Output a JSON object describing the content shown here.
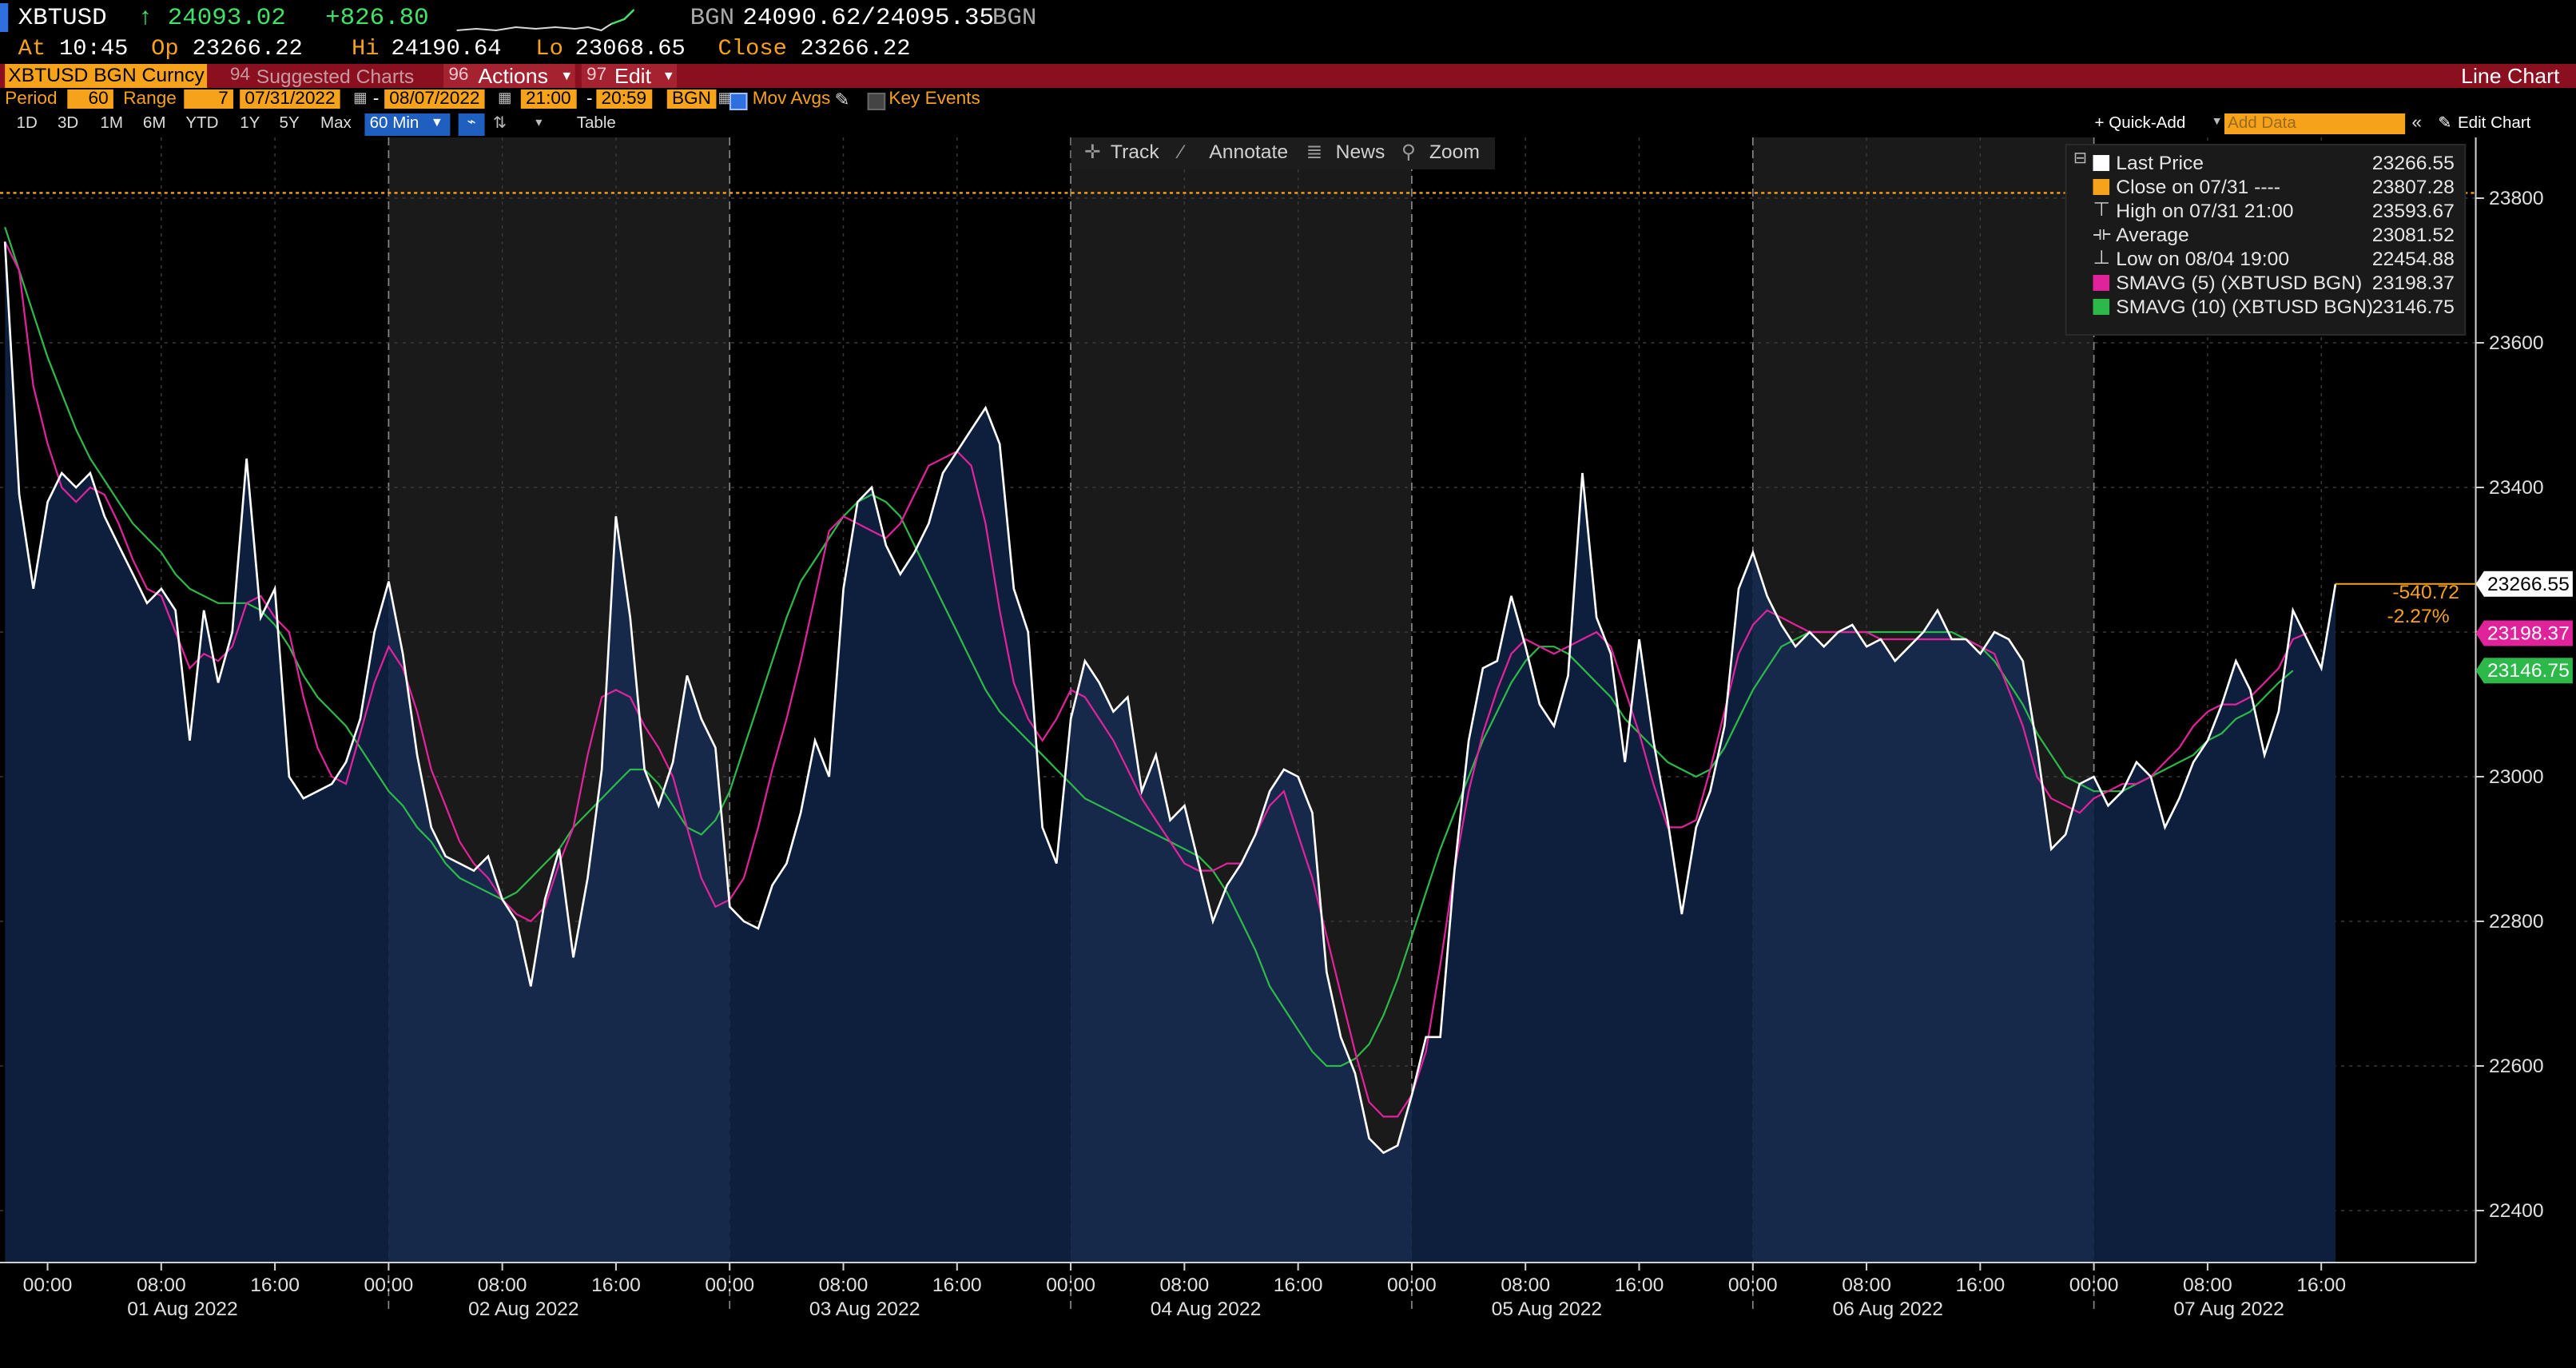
{
  "header": {
    "ticker": "XBTUSD",
    "last": "↑ 24093.02",
    "change": "+826.80",
    "source1": "BGN",
    "bidask": "24090.62/24095.35",
    "source2": "BGN",
    "at_label": "At",
    "at_time": "10:45",
    "op_label": "Op",
    "op": "23266.22",
    "hi_label": "Hi",
    "hi": "24190.64",
    "lo_label": "Lo",
    "lo": "23068.65",
    "close_label": "Close",
    "close": "23266.22"
  },
  "menu": {
    "security": "XBTUSD BGN Curncy",
    "suggested_num": "94",
    "suggested": "Suggested Charts",
    "actions_num": "96",
    "actions": "Actions",
    "edit_num": "97",
    "edit": "Edit",
    "chart_type": "Line Chart"
  },
  "controls": {
    "period_label": "Period",
    "period": "60",
    "range_label": "Range",
    "range": "7",
    "start_date": "07/31/2022",
    "end_date": "08/07/2022",
    "start_time": "21:00",
    "end_time": "20:59",
    "source": "BGN",
    "mov_avgs": "Mov Avgs",
    "key_events": "Key Events",
    "ranges": [
      "1D",
      "3D",
      "1M",
      "6M",
      "YTD",
      "1Y",
      "5Y",
      "Max"
    ],
    "interval": "60 Min",
    "table": "Table",
    "quick_add": "+ Quick-Add",
    "add_data_placeholder": "Add Data",
    "edit_chart": "Edit Chart"
  },
  "toolbar": {
    "track": "Track",
    "annotate": "Annotate",
    "news": "News",
    "zoom": "Zoom"
  },
  "colors": {
    "price": "#ffffff",
    "sma5": "#e0239b",
    "sma10": "#2db84a",
    "close_ref": "#f7a21b",
    "accent": "#f7a21b",
    "menu_bar": "#8a1020"
  },
  "chart_data": {
    "type": "line",
    "ylim": [
      22300,
      23900
    ],
    "yticks": [
      22400,
      22600,
      22800,
      23000,
      23200,
      23400,
      23600,
      23800
    ],
    "x_start": "2022-07-31 21:00",
    "x_step_hours": 1,
    "reference_close": 23807.28,
    "series": [
      {
        "name": "Last Price",
        "values": [
          23740,
          23390,
          23260,
          23380,
          23420,
          23400,
          23420,
          23360,
          23320,
          23280,
          23240,
          23260,
          23230,
          23050,
          23230,
          23130,
          23200,
          23440,
          23220,
          23260,
          23000,
          22970,
          22980,
          22990,
          23020,
          23080,
          23200,
          23270,
          23170,
          23030,
          22930,
          22890,
          22880,
          22870,
          22890,
          22830,
          22800,
          22710,
          22830,
          22900,
          22750,
          22860,
          23010,
          23360,
          23220,
          23010,
          22960,
          23020,
          23140,
          23080,
          23040,
          22820,
          22800,
          22790,
          22850,
          22880,
          22950,
          23050,
          23000,
          23260,
          23380,
          23400,
          23320,
          23280,
          23310,
          23350,
          23420,
          23450,
          23480,
          23510,
          23460,
          23260,
          23200,
          22930,
          22880,
          23080,
          23160,
          23130,
          23090,
          23110,
          22980,
          23030,
          22940,
          22960,
          22880,
          22800,
          22850,
          22880,
          22920,
          22980,
          23010,
          23000,
          22950,
          22730,
          22640,
          22590,
          22500,
          22480,
          22490,
          22560,
          22640,
          22640,
          22870,
          23050,
          23150,
          23160,
          23250,
          23180,
          23100,
          23070,
          23140,
          23420,
          23220,
          23170,
          23020,
          23190,
          23050,
          22940,
          22810,
          22930,
          22980,
          23070,
          23260,
          23310,
          23250,
          23210,
          23180,
          23200,
          23180,
          23200,
          23210,
          23180,
          23190,
          23160,
          23180,
          23200,
          23230,
          23190,
          23190,
          23170,
          23200,
          23190,
          23160,
          23040,
          22900,
          22920,
          22990,
          23000,
          22960,
          22980,
          23020,
          23000,
          22930,
          22970,
          23020,
          23050,
          23100,
          23160,
          23120,
          23030,
          23090,
          23230,
          23190,
          23150,
          23266.55
        ]
      },
      {
        "name": "SMAVG (5) (XBTUSD BGN)",
        "values": [
          23740,
          23700,
          23540,
          23460,
          23400,
          23380,
          23400,
          23390,
          23350,
          23300,
          23260,
          23250,
          23200,
          23150,
          23170,
          23160,
          23180,
          23240,
          23250,
          23220,
          23200,
          23110,
          23040,
          23000,
          22990,
          23060,
          23130,
          23180,
          23150,
          23090,
          23010,
          22960,
          22910,
          22880,
          22860,
          22830,
          22810,
          22800,
          22820,
          22880,
          22930,
          23030,
          23110,
          23120,
          23110,
          23070,
          23040,
          23000,
          22930,
          22860,
          22820,
          22830,
          22860,
          22930,
          23010,
          23080,
          23160,
          23250,
          23340,
          23360,
          23350,
          23340,
          23330,
          23350,
          23390,
          23430,
          23440,
          23450,
          23430,
          23350,
          23230,
          23130,
          23080,
          23050,
          23080,
          23120,
          23110,
          23080,
          23050,
          23010,
          22970,
          22940,
          22910,
          22880,
          22870,
          22870,
          22880,
          22880,
          22920,
          22960,
          22980,
          22920,
          22860,
          22780,
          22700,
          22620,
          22550,
          22530,
          22530,
          22560,
          22620,
          22740,
          22870,
          22980,
          23060,
          23120,
          23170,
          23190,
          23180,
          23170,
          23180,
          23190,
          23200,
          23180,
          23120,
          23060,
          22990,
          22930,
          22930,
          22940,
          23010,
          23090,
          23170,
          23210,
          23230,
          23220,
          23210,
          23200,
          23200,
          23200,
          23200,
          23200,
          23190,
          23190,
          23190,
          23190,
          23190,
          23190,
          23190,
          23180,
          23170,
          23120,
          23070,
          23000,
          22970,
          22960,
          22950,
          22970,
          22980,
          22990,
          22990,
          23000,
          23020,
          23040,
          23070,
          23090,
          23100,
          23100,
          23110,
          23130,
          23150,
          23190,
          23198.37
        ]
      },
      {
        "name": "SMAVG (10) (XBTUSD BGN)",
        "values": [
          23760,
          23700,
          23640,
          23580,
          23530,
          23480,
          23440,
          23410,
          23380,
          23350,
          23330,
          23310,
          23280,
          23260,
          23250,
          23240,
          23240,
          23240,
          23230,
          23210,
          23180,
          23140,
          23110,
          23090,
          23070,
          23040,
          23010,
          22980,
          22960,
          22930,
          22910,
          22880,
          22860,
          22850,
          22840,
          22830,
          22840,
          22860,
          22880,
          22900,
          22930,
          22950,
          22970,
          22990,
          23010,
          23010,
          22990,
          22960,
          22930,
          22920,
          22940,
          22980,
          23040,
          23100,
          23160,
          23220,
          23270,
          23300,
          23330,
          23360,
          23380,
          23390,
          23380,
          23360,
          23320,
          23280,
          23240,
          23200,
          23160,
          23120,
          23090,
          23070,
          23050,
          23030,
          23010,
          22990,
          22970,
          22960,
          22950,
          22940,
          22930,
          22920,
          22910,
          22900,
          22890,
          22870,
          22840,
          22800,
          22760,
          22710,
          22680,
          22650,
          22620,
          22600,
          22600,
          22610,
          22630,
          22670,
          22720,
          22780,
          22840,
          22900,
          22950,
          23000,
          23050,
          23090,
          23130,
          23160,
          23180,
          23180,
          23170,
          23150,
          23130,
          23110,
          23080,
          23060,
          23040,
          23020,
          23010,
          23000,
          23010,
          23040,
          23080,
          23120,
          23150,
          23180,
          23190,
          23200,
          23200,
          23200,
          23200,
          23200,
          23200,
          23200,
          23200,
          23200,
          23200,
          23200,
          23190,
          23180,
          23160,
          23130,
          23100,
          23060,
          23030,
          23000,
          22990,
          22980,
          22980,
          22980,
          22990,
          23000,
          23010,
          23020,
          23030,
          23050,
          23060,
          23080,
          23090,
          23110,
          23130,
          23146.75
        ]
      }
    ],
    "date_labels": [
      "01 Aug 2022",
      "02 Aug 2022",
      "03 Aug 2022",
      "04 Aug 2022",
      "05 Aug 2022",
      "06 Aug 2022",
      "07 Aug 2022"
    ],
    "time_labels": [
      "00:00",
      "08:00",
      "16:00"
    ],
    "legend": [
      {
        "label": "Last Price",
        "value": "23266.55",
        "marker": "square",
        "color": "#ffffff"
      },
      {
        "label": "Close on 07/31 ----",
        "value": "23807.28",
        "marker": "square",
        "color": "#f7a21b"
      },
      {
        "label": "High on 07/31 21:00",
        "value": "23593.67",
        "marker": "high",
        "color": "#cfcfcf"
      },
      {
        "label": "Average",
        "value": "23081.52",
        "marker": "avg",
        "color": "#cfcfcf"
      },
      {
        "label": "Low on 08/04 19:00",
        "value": "22454.88",
        "marker": "low",
        "color": "#cfcfcf"
      },
      {
        "label": "SMAVG (5) (XBTUSD BGN)",
        "value": "23198.37",
        "marker": "square",
        "color": "#e0239b"
      },
      {
        "label": "SMAVG (10) (XBTUSD BGN)",
        "value": "23146.75",
        "marker": "square",
        "color": "#2db84a"
      }
    ],
    "last_tag": "23266.55",
    "sma5_tag": "23198.37",
    "sma10_tag": "23146.75",
    "net_change": "-540.72",
    "pct_change": "-2.27%"
  }
}
